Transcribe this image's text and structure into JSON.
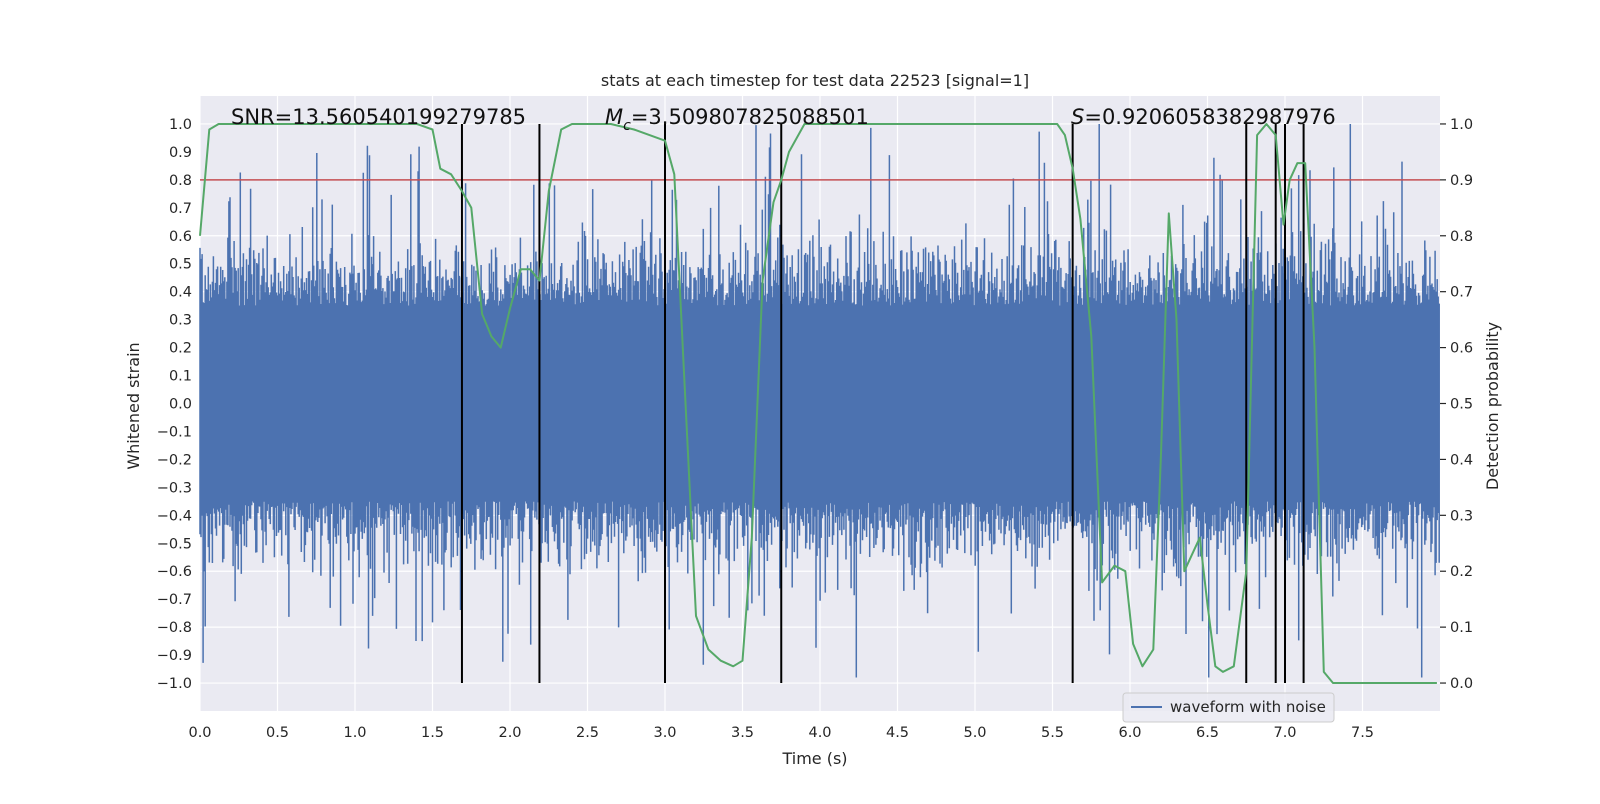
{
  "chart_data": {
    "type": "line",
    "title": "stats at each timestep for test data 22523 [signal=1]",
    "xlabel": "Time (s)",
    "ylabel": "Whitened strain",
    "ylabel_right": "Detection probability",
    "xlim": [
      0.0,
      8.0
    ],
    "ylim": [
      -1.1,
      1.1
    ],
    "ylim_right": [
      -0.05,
      1.05
    ],
    "x_ticks": [
      0.0,
      0.5,
      1.0,
      1.5,
      2.0,
      2.5,
      3.0,
      3.5,
      4.0,
      4.5,
      5.0,
      5.5,
      6.0,
      6.5,
      7.0,
      7.5
    ],
    "x_tick_labels": [
      "0.0",
      "0.5",
      "1.0",
      "1.5",
      "2.0",
      "2.5",
      "3.0",
      "3.5",
      "4.0",
      "4.5",
      "5.0",
      "5.5",
      "6.0",
      "6.5",
      "7.0",
      "7.5"
    ],
    "y_ticks": [
      1.0,
      0.9,
      0.8,
      0.7,
      0.6,
      0.5,
      0.4,
      0.3,
      0.2,
      0.1,
      0.0,
      -0.1,
      -0.2,
      -0.3,
      -0.4,
      -0.5,
      -0.6,
      -0.7,
      -0.8,
      -0.9,
      -1.0
    ],
    "y_tick_labels": [
      "1.0",
      "0.9",
      "0.8",
      "0.7",
      "0.6",
      "0.5",
      "0.4",
      "0.3",
      "0.2",
      "0.1",
      "0.0",
      "−0.1",
      "−0.2",
      "−0.3",
      "−0.4",
      "−0.5",
      "−0.6",
      "−0.7",
      "−0.8",
      "−0.9",
      "−1.0"
    ],
    "y_right_ticks": [
      1.0,
      0.9,
      0.8,
      0.7,
      0.6,
      0.5,
      0.4,
      0.3,
      0.2,
      0.1,
      0.0
    ],
    "y_right_tick_labels": [
      "1.0",
      "0.9",
      "0.8",
      "0.7",
      "0.6",
      "0.5",
      "0.4",
      "0.3",
      "0.2",
      "0.1",
      "0.0"
    ],
    "grid": true,
    "waveform": {
      "name": "waveform with noise",
      "color": "#4c72b0",
      "sample_count": 1200,
      "typical_amplitude": 0.35,
      "peak_range": [
        -0.98,
        1.0
      ]
    },
    "threshold_line": {
      "y": 0.8,
      "color": "#c44e52"
    },
    "event_lines": {
      "x": [
        1.69,
        2.19,
        3.0,
        3.75,
        5.63,
        6.75,
        6.94,
        7.0,
        7.12
      ],
      "y_range": [
        -1.0,
        1.0
      ],
      "color": "#000000"
    },
    "probability_series": {
      "color": "#55a868",
      "x": [
        0.0,
        0.06,
        0.12,
        0.2,
        0.3,
        0.5,
        0.8,
        1.0,
        1.2,
        1.4,
        1.5,
        1.55,
        1.62,
        1.69,
        1.75,
        1.82,
        1.88,
        1.94,
        2.0,
        2.07,
        2.13,
        2.19,
        2.25,
        2.33,
        2.4,
        2.5,
        2.65,
        2.8,
        2.9,
        3.0,
        3.06,
        3.12,
        3.2,
        3.28,
        3.36,
        3.44,
        3.5,
        3.56,
        3.63,
        3.7,
        3.75,
        3.8,
        3.9,
        4.0,
        4.2,
        4.5,
        5.0,
        5.3,
        5.45,
        5.53,
        5.58,
        5.63,
        5.68,
        5.75,
        5.82,
        5.9,
        5.97,
        6.02,
        6.08,
        6.15,
        6.2,
        6.25,
        6.3,
        6.35,
        6.45,
        6.5,
        6.55,
        6.6,
        6.67,
        6.75,
        6.82,
        6.88,
        6.94,
        6.99,
        7.03,
        7.08,
        7.13,
        7.19,
        7.25,
        7.31,
        7.4,
        7.5,
        7.6,
        7.7,
        7.8,
        7.9,
        7.98
      ],
      "y": [
        0.8,
        0.99,
        1.0,
        1.0,
        1.0,
        1.0,
        1.0,
        1.0,
        1.0,
        1.0,
        0.99,
        0.92,
        0.91,
        0.88,
        0.85,
        0.66,
        0.62,
        0.6,
        0.67,
        0.74,
        0.74,
        0.72,
        0.88,
        0.99,
        1.0,
        1.0,
        1.0,
        0.99,
        0.98,
        0.97,
        0.91,
        0.57,
        0.12,
        0.06,
        0.04,
        0.03,
        0.04,
        0.26,
        0.72,
        0.86,
        0.9,
        0.95,
        1.0,
        1.0,
        1.0,
        1.0,
        1.0,
        1.0,
        1.0,
        1.0,
        0.98,
        0.92,
        0.83,
        0.62,
        0.18,
        0.21,
        0.2,
        0.07,
        0.03,
        0.06,
        0.41,
        0.84,
        0.65,
        0.2,
        0.26,
        0.14,
        0.03,
        0.02,
        0.03,
        0.2,
        0.98,
        1.0,
        0.98,
        0.82,
        0.9,
        0.93,
        0.93,
        0.6,
        0.02,
        0.0,
        0.0,
        0.0,
        0.0,
        0.0,
        0.0,
        0.0,
        0.0
      ]
    },
    "annotations": {
      "snr": "SNR=13.560540199279785",
      "mc_symbol": "M",
      "mc_sub": "c",
      "mc_value": "=3.509807825088501",
      "s_symbol": "S",
      "s_value": "=0.9206058382987976"
    },
    "legend": {
      "label": "waveform with noise",
      "placement": "lower-right"
    }
  }
}
